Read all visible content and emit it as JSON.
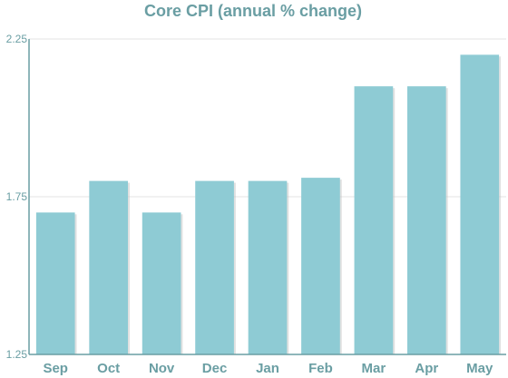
{
  "chart_data": {
    "type": "bar",
    "title": "Core CPI (annual % change)",
    "xlabel": "",
    "ylabel": "",
    "categories": [
      "Sep",
      "Oct",
      "Nov",
      "Dec",
      "Jan",
      "Feb",
      "Mar",
      "Apr",
      "May"
    ],
    "values": [
      1.7,
      1.8,
      1.7,
      1.8,
      1.8,
      1.81,
      2.1,
      2.1,
      2.2
    ],
    "ylim": [
      1.25,
      2.25
    ],
    "yticks": [
      "1.25",
      "1.75",
      "2.25"
    ],
    "grid": true,
    "legend": "none",
    "colors": {
      "bar": "#8ecbd4",
      "bar_shadow": "#c4c4c4",
      "text": "#6a9ea3",
      "axis": "#6a9ea3",
      "grid": "#e3e3e3"
    }
  }
}
